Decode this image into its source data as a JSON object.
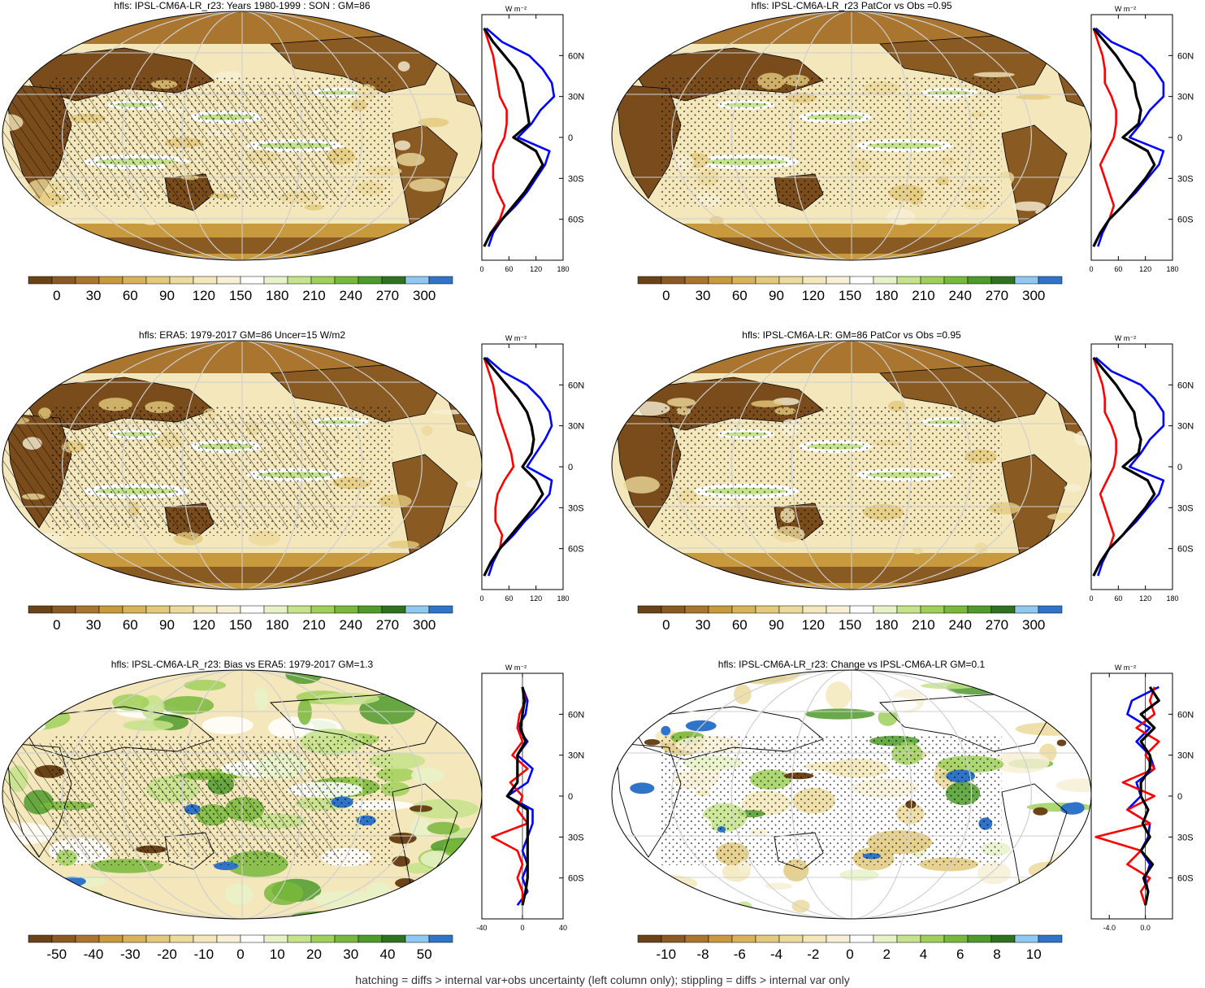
{
  "colors": {
    "palette": [
      "#6b4318",
      "#8a5a23",
      "#a9752f",
      "#c99a3d",
      "#d7b35a",
      "#e3c97c",
      "#ecd99c",
      "#f3e7bb",
      "#f7f0d6",
      "#ffffff",
      "#e7f2c9",
      "#c4e38a",
      "#9fd05a",
      "#78b93b",
      "#4e9a2a",
      "#2f7320",
      "#8fc8f0",
      "#2f74c8"
    ],
    "ocean_base": "#f3e7bb",
    "land_dark": "#7a4c1b",
    "zonal_model": "#000000",
    "zonal_land": "#ff0000",
    "zonal_ocean": "#0000ff"
  },
  "panels": [
    {
      "id": "model-son",
      "title": "hfls: IPSL-CM6A-LR_r23: Years 1980-1999 : SON : GM=86",
      "kind": "abs",
      "hatch": true,
      "colorbar_labels": [
        "0",
        "30",
        "60",
        "90",
        "120",
        "150",
        "180",
        "210",
        "240",
        "270",
        "300"
      ],
      "zonal": {
        "unit": "W m⁻²",
        "xticks": [
          "0",
          "60",
          "120",
          "180"
        ],
        "xlim": [
          0,
          180
        ],
        "lat_labels": [
          "60N",
          "30N",
          "0",
          "30S",
          "60S"
        ]
      }
    },
    {
      "id": "model-patcor",
      "title": "hfls: IPSL-CM6A-LR_r23 PatCor vs Obs =0.95",
      "kind": "abs",
      "hatch": false,
      "colorbar_labels": [
        "0",
        "30",
        "60",
        "90",
        "120",
        "150",
        "180",
        "210",
        "240",
        "270",
        "300"
      ],
      "zonal": {
        "unit": "W m⁻²",
        "xticks": [
          "0",
          "60",
          "120",
          "180"
        ],
        "xlim": [
          0,
          180
        ],
        "lat_labels": [
          "60N",
          "30N",
          "0",
          "30S",
          "60S"
        ]
      }
    },
    {
      "id": "era5",
      "title": "hfls: ERA5: 1979-2017 GM=86 Uncer=15 W/m2",
      "kind": "abs",
      "hatch": true,
      "colorbar_labels": [
        "0",
        "30",
        "60",
        "90",
        "120",
        "150",
        "180",
        "210",
        "240",
        "270",
        "300"
      ],
      "zonal": {
        "unit": "W m⁻²",
        "xticks": [
          "0",
          "60",
          "120",
          "180"
        ],
        "xlim": [
          0,
          180
        ],
        "lat_labels": [
          "60N",
          "30N",
          "0",
          "30S",
          "60S"
        ]
      }
    },
    {
      "id": "ensemble",
      "title": "hfls: IPSL-CM6A-LR: GM=86 PatCor vs Obs =0.95",
      "kind": "abs",
      "hatch": false,
      "colorbar_labels": [
        "0",
        "30",
        "60",
        "90",
        "120",
        "150",
        "180",
        "210",
        "240",
        "270",
        "300"
      ],
      "zonal": {
        "unit": "W m⁻²",
        "xticks": [
          "0",
          "60",
          "120",
          "180"
        ],
        "xlim": [
          0,
          180
        ],
        "lat_labels": [
          "60N",
          "30N",
          "0",
          "30S",
          "60S"
        ]
      }
    },
    {
      "id": "bias",
      "title": "hfls: IPSL-CM6A-LR_r23: Bias vs ERA5: 1979-2017  GM=1.3",
      "kind": "diff",
      "hatch": true,
      "colorbar_labels": [
        "-50",
        "-40",
        "-30",
        "-20",
        "-10",
        "0",
        "10",
        "20",
        "30",
        "40",
        "50"
      ],
      "zonal": {
        "unit": "W m⁻²",
        "xticks": [
          "-40",
          "0",
          "40"
        ],
        "xlim": [
          -40,
          40
        ],
        "lat_labels": [
          "60N",
          "30N",
          "0",
          "30S",
          "60S"
        ]
      }
    },
    {
      "id": "change",
      "title": "hfls: IPSL-CM6A-LR_r23: Change vs IPSL-CM6A-LR GM=0.1",
      "kind": "change",
      "hatch": false,
      "colorbar_labels": [
        "-10",
        "-8",
        "-6",
        "-4",
        "-2",
        "0",
        "2",
        "4",
        "6",
        "8",
        "10"
      ],
      "zonal": {
        "unit": "W m⁻²",
        "xticks": [
          "-4.0",
          "0.0"
        ],
        "xlim": [
          -6,
          3
        ],
        "lat_labels": [
          "60N",
          "30N",
          "0",
          "30S",
          "60S"
        ]
      }
    }
  ],
  "chart_data": [
    {
      "type": "line",
      "title": "hfls: IPSL-CM6A-LR_r23: Years 1980-1999 : SON : GM=86",
      "xlabel": "W m⁻²",
      "ylabel": "",
      "xlim": [
        0,
        180
      ],
      "ylim": [
        -90,
        90
      ],
      "series": [
        {
          "color": "#000000",
          "y": [
            80,
            70,
            60,
            50,
            40,
            30,
            20,
            10,
            0,
            -10,
            -20,
            -30,
            -40,
            -50,
            -60,
            -70,
            -80
          ],
          "x": [
            5,
            25,
            50,
            75,
            90,
            95,
            100,
            105,
            70,
            120,
            135,
            115,
            95,
            70,
            45,
            20,
            5
          ]
        },
        {
          "color": "#ff0000",
          "y": [
            80,
            70,
            60,
            50,
            40,
            30,
            20,
            10,
            0,
            -10,
            -20,
            -30,
            -40,
            -50,
            -60,
            -70,
            -80
          ],
          "x": [
            5,
            15,
            25,
            30,
            35,
            40,
            55,
            55,
            50,
            35,
            25,
            25,
            35,
            50,
            40,
            20,
            5
          ]
        },
        {
          "color": "#0000ff",
          "y": [
            80,
            70,
            60,
            50,
            40,
            30,
            20,
            10,
            0,
            -10,
            -20,
            -30,
            -40,
            -50,
            -60,
            -70,
            -80
          ],
          "x": [
            10,
            45,
            105,
            135,
            155,
            160,
            130,
            110,
            80,
            150,
            140,
            120,
            100,
            75,
            45,
            25,
            15
          ]
        }
      ]
    },
    {
      "type": "line",
      "title": "hfls: IPSL-CM6A-LR_r23 PatCor vs Obs =0.95",
      "xlabel": "W m⁻²",
      "ylabel": "",
      "xlim": [
        0,
        180
      ],
      "ylim": [
        -90,
        90
      ],
      "series": [
        {
          "color": "#000000",
          "y": [
            80,
            70,
            60,
            50,
            40,
            30,
            20,
            10,
            0,
            -10,
            -20,
            -30,
            -40,
            -50,
            -60,
            -70,
            -80
          ],
          "x": [
            5,
            30,
            55,
            75,
            95,
            100,
            110,
            105,
            70,
            125,
            140,
            120,
            95,
            70,
            40,
            20,
            5
          ]
        },
        {
          "color": "#ff0000",
          "y": [
            80,
            70,
            60,
            50,
            40,
            30,
            20,
            10,
            0,
            -10,
            -20,
            -30,
            -40,
            -50,
            -60,
            -70,
            -80
          ],
          "x": [
            5,
            15,
            25,
            30,
            30,
            45,
            55,
            55,
            50,
            35,
            20,
            30,
            40,
            50,
            40,
            20,
            5
          ]
        },
        {
          "color": "#0000ff",
          "y": [
            80,
            70,
            60,
            50,
            40,
            30,
            20,
            10,
            0,
            -10,
            -20,
            -30,
            -40,
            -50,
            -60,
            -70,
            -80
          ],
          "x": [
            10,
            45,
            110,
            140,
            160,
            160,
            130,
            110,
            85,
            160,
            150,
            125,
            100,
            70,
            40,
            25,
            15
          ]
        }
      ]
    },
    {
      "type": "line",
      "title": "hfls: ERA5: 1979-2017 GM=86 Uncer=15 W/m2",
      "xlabel": "W m⁻²",
      "ylabel": "",
      "xlim": [
        0,
        180
      ],
      "ylim": [
        -90,
        90
      ],
      "series": [
        {
          "color": "#000000",
          "y": [
            80,
            70,
            60,
            50,
            40,
            30,
            20,
            10,
            0,
            -10,
            -20,
            -30,
            -40,
            -50,
            -60,
            -70,
            -80
          ],
          "x": [
            5,
            30,
            55,
            80,
            100,
            110,
            115,
            110,
            90,
            120,
            135,
            115,
            90,
            65,
            40,
            20,
            5
          ]
        },
        {
          "color": "#ff0000",
          "y": [
            80,
            70,
            60,
            50,
            40,
            30,
            20,
            10,
            0,
            -10,
            -20,
            -30,
            -40,
            -50,
            -60,
            -70,
            -80
          ],
          "x": [
            5,
            15,
            25,
            30,
            35,
            45,
            55,
            65,
            70,
            50,
            35,
            30,
            30,
            45,
            40,
            20,
            5
          ]
        },
        {
          "color": "#0000ff",
          "y": [
            80,
            70,
            60,
            50,
            40,
            30,
            20,
            10,
            0,
            -10,
            -20,
            -30,
            -40,
            -50,
            -60,
            -70,
            -80
          ],
          "x": [
            10,
            45,
            100,
            130,
            150,
            155,
            140,
            120,
            100,
            155,
            150,
            125,
            95,
            70,
            40,
            25,
            15
          ]
        }
      ]
    },
    {
      "type": "line",
      "title": "hfls: IPSL-CM6A-LR: GM=86 PatCor vs Obs =0.95",
      "xlabel": "W m⁻²",
      "ylabel": "",
      "xlim": [
        0,
        180
      ],
      "ylim": [
        -90,
        90
      ],
      "series": [
        {
          "color": "#000000",
          "y": [
            80,
            70,
            60,
            50,
            40,
            30,
            20,
            10,
            0,
            -10,
            -20,
            -30,
            -40,
            -50,
            -60,
            -70,
            -80
          ],
          "x": [
            5,
            30,
            55,
            75,
            95,
            100,
            110,
            105,
            70,
            125,
            140,
            120,
            95,
            70,
            40,
            20,
            5
          ]
        },
        {
          "color": "#ff0000",
          "y": [
            80,
            70,
            60,
            50,
            40,
            30,
            20,
            10,
            0,
            -10,
            -20,
            -30,
            -40,
            -50,
            -60,
            -70,
            -80
          ],
          "x": [
            5,
            15,
            25,
            30,
            30,
            45,
            55,
            55,
            50,
            35,
            20,
            30,
            40,
            50,
            40,
            20,
            5
          ]
        },
        {
          "color": "#0000ff",
          "y": [
            80,
            70,
            60,
            50,
            40,
            30,
            20,
            10,
            0,
            -10,
            -20,
            -30,
            -40,
            -50,
            -60,
            -70,
            -80
          ],
          "x": [
            10,
            45,
            110,
            140,
            160,
            160,
            130,
            110,
            85,
            160,
            150,
            125,
            100,
            70,
            40,
            25,
            15
          ]
        }
      ]
    },
    {
      "type": "line",
      "title": "hfls: IPSL-CM6A-LR_r23: Bias vs ERA5: 1979-2017  GM=1.3",
      "xlabel": "W m⁻²",
      "ylabel": "",
      "xlim": [
        -40,
        40
      ],
      "ylim": [
        -90,
        90
      ],
      "series": [
        {
          "color": "#000000",
          "y": [
            80,
            70,
            60,
            50,
            40,
            30,
            20,
            10,
            0,
            -10,
            -20,
            -30,
            -40,
            -50,
            -60,
            -70,
            -80
          ],
          "x": [
            0,
            2,
            0,
            -2,
            3,
            -5,
            -5,
            -5,
            -15,
            5,
            5,
            5,
            5,
            5,
            5,
            3,
            0
          ]
        },
        {
          "color": "#ff0000",
          "y": [
            80,
            70,
            60,
            50,
            40,
            30,
            20,
            10,
            0,
            -10,
            -20,
            -30,
            -40,
            -50,
            -60,
            -70,
            -80
          ],
          "x": [
            0,
            3,
            -3,
            -5,
            0,
            -10,
            5,
            -12,
            0,
            -5,
            5,
            -30,
            -5,
            0,
            -5,
            0,
            0
          ]
        },
        {
          "color": "#0000ff",
          "y": [
            80,
            70,
            60,
            50,
            40,
            30,
            20,
            10,
            0,
            -10,
            -20,
            -30,
            -40,
            -50,
            -60,
            -70,
            -80
          ],
          "x": [
            0,
            5,
            3,
            -5,
            5,
            -5,
            10,
            5,
            -15,
            10,
            10,
            5,
            0,
            5,
            0,
            5,
            -5
          ]
        }
      ]
    },
    {
      "type": "line",
      "title": "hfls: IPSL-CM6A-LR_r23: Change vs IPSL-CM6A-LR GM=0.1",
      "xlabel": "W m⁻²",
      "ylabel": "",
      "xlim": [
        -6,
        3
      ],
      "ylim": [
        -90,
        90
      ],
      "series": [
        {
          "color": "#000000",
          "y": [
            80,
            70,
            60,
            50,
            40,
            30,
            20,
            10,
            0,
            -10,
            -20,
            -30,
            -40,
            -50,
            -60,
            -70,
            -80
          ],
          "x": [
            0.5,
            1.5,
            -0.5,
            1.0,
            -0.5,
            0.5,
            0.5,
            -0.5,
            -0.5,
            0.3,
            -0.3,
            0.5,
            -0.5,
            0.8,
            -0.2,
            0.3,
            0.0
          ]
        },
        {
          "color": "#ff0000",
          "y": [
            80,
            70,
            60,
            50,
            40,
            30,
            20,
            10,
            0,
            -10,
            -20,
            -30,
            -40,
            -50,
            -60,
            -70,
            -80
          ],
          "x": [
            1.0,
            0.5,
            1.0,
            -1.0,
            1.5,
            0.0,
            1.0,
            -2.5,
            1.0,
            -2.0,
            0.5,
            -5.5,
            -0.5,
            -2.0,
            0.5,
            -0.5,
            0.0
          ]
        },
        {
          "color": "#0000ff",
          "y": [
            80,
            70,
            60,
            50,
            40,
            30,
            20,
            10,
            0,
            -10,
            -20,
            -30,
            -40,
            -50,
            -60,
            -70,
            -80
          ],
          "x": [
            1.5,
            -1.5,
            -2.0,
            0.5,
            -1.0,
            0.5,
            1.0,
            -1.0,
            -0.5,
            -2.0,
            0.5,
            0.3,
            -0.5,
            0.5,
            0.0,
            0.3,
            0.0
          ]
        }
      ]
    }
  ],
  "footer": "hatching = diffs > internal var+obs uncertainty (left column only); stippling = diffs > internal var only"
}
